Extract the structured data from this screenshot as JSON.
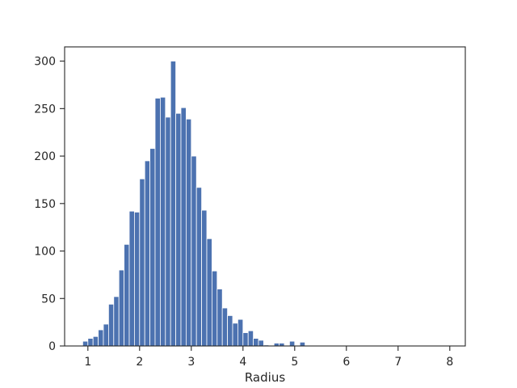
{
  "chart_data": {
    "type": "bar",
    "title": "",
    "xlabel": "Radius",
    "ylabel": "",
    "xlim": [
      0.55,
      8.3
    ],
    "ylim": [
      0,
      315
    ],
    "x_ticks": [
      1,
      2,
      3,
      4,
      5,
      6,
      7,
      8
    ],
    "y_ticks": [
      0,
      50,
      100,
      150,
      200,
      250,
      300
    ],
    "grid": false,
    "legend": "none",
    "bar_color": "#4c72b0",
    "bin_width": 0.1,
    "bins": [
      {
        "x": 0.95,
        "count": 5
      },
      {
        "x": 1.05,
        "count": 8
      },
      {
        "x": 1.15,
        "count": 10
      },
      {
        "x": 1.25,
        "count": 17
      },
      {
        "x": 1.35,
        "count": 23
      },
      {
        "x": 1.45,
        "count": 44
      },
      {
        "x": 1.55,
        "count": 52
      },
      {
        "x": 1.65,
        "count": 80
      },
      {
        "x": 1.75,
        "count": 107
      },
      {
        "x": 1.85,
        "count": 142
      },
      {
        "x": 1.95,
        "count": 141
      },
      {
        "x": 2.05,
        "count": 176
      },
      {
        "x": 2.15,
        "count": 195
      },
      {
        "x": 2.25,
        "count": 208
      },
      {
        "x": 2.35,
        "count": 261
      },
      {
        "x": 2.45,
        "count": 262
      },
      {
        "x": 2.55,
        "count": 241
      },
      {
        "x": 2.65,
        "count": 300
      },
      {
        "x": 2.75,
        "count": 245
      },
      {
        "x": 2.85,
        "count": 251
      },
      {
        "x": 2.95,
        "count": 239
      },
      {
        "x": 3.05,
        "count": 200
      },
      {
        "x": 3.15,
        "count": 167
      },
      {
        "x": 3.25,
        "count": 143
      },
      {
        "x": 3.35,
        "count": 113
      },
      {
        "x": 3.45,
        "count": 79
      },
      {
        "x": 3.55,
        "count": 60
      },
      {
        "x": 3.65,
        "count": 40
      },
      {
        "x": 3.75,
        "count": 32
      },
      {
        "x": 3.85,
        "count": 24
      },
      {
        "x": 3.95,
        "count": 28
      },
      {
        "x": 4.05,
        "count": 14
      },
      {
        "x": 4.15,
        "count": 16
      },
      {
        "x": 4.25,
        "count": 8
      },
      {
        "x": 4.35,
        "count": 6
      },
      {
        "x": 4.45,
        "count": 1
      },
      {
        "x": 4.65,
        "count": 3
      },
      {
        "x": 4.75,
        "count": 3
      },
      {
        "x": 4.95,
        "count": 5
      },
      {
        "x": 5.15,
        "count": 4
      }
    ]
  }
}
